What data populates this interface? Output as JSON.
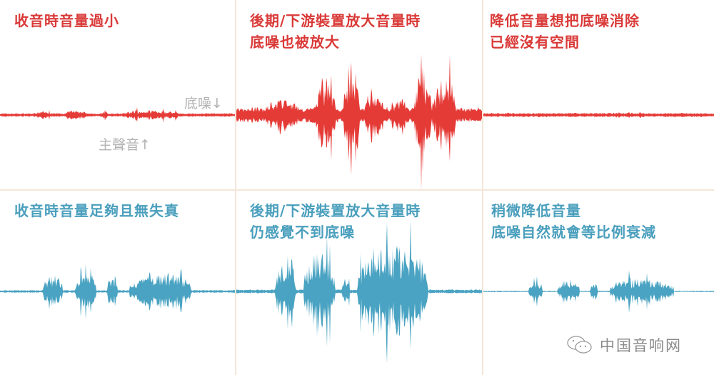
{
  "colors": {
    "top_row": "#e53b37",
    "bottom_row": "#4aa3c2",
    "divider": "#f3e6d8",
    "annotation": "#b3b3b3"
  },
  "panels": [
    {
      "title": "收音時音量過小",
      "row": "top"
    },
    {
      "title": "後期/下游裝置放大音量時\n底噪也被放大",
      "row": "top"
    },
    {
      "title": "降低音量想把底噪消除\n已經沒有空間",
      "row": "top"
    },
    {
      "title": "收音時音量足夠且無失真",
      "row": "bottom"
    },
    {
      "title": "後期/下游裝置放大音量時\n仍感覺不到底噪",
      "row": "bottom"
    },
    {
      "title": "稍微降低音量\n底噪自然就會等比例衰減",
      "row": "bottom"
    }
  ],
  "annotations": {
    "noise_floor": "底噪↓",
    "main_sound": "主聲音↑"
  },
  "watermark": {
    "icon": "wechat-icon",
    "text": "中国音响网"
  }
}
